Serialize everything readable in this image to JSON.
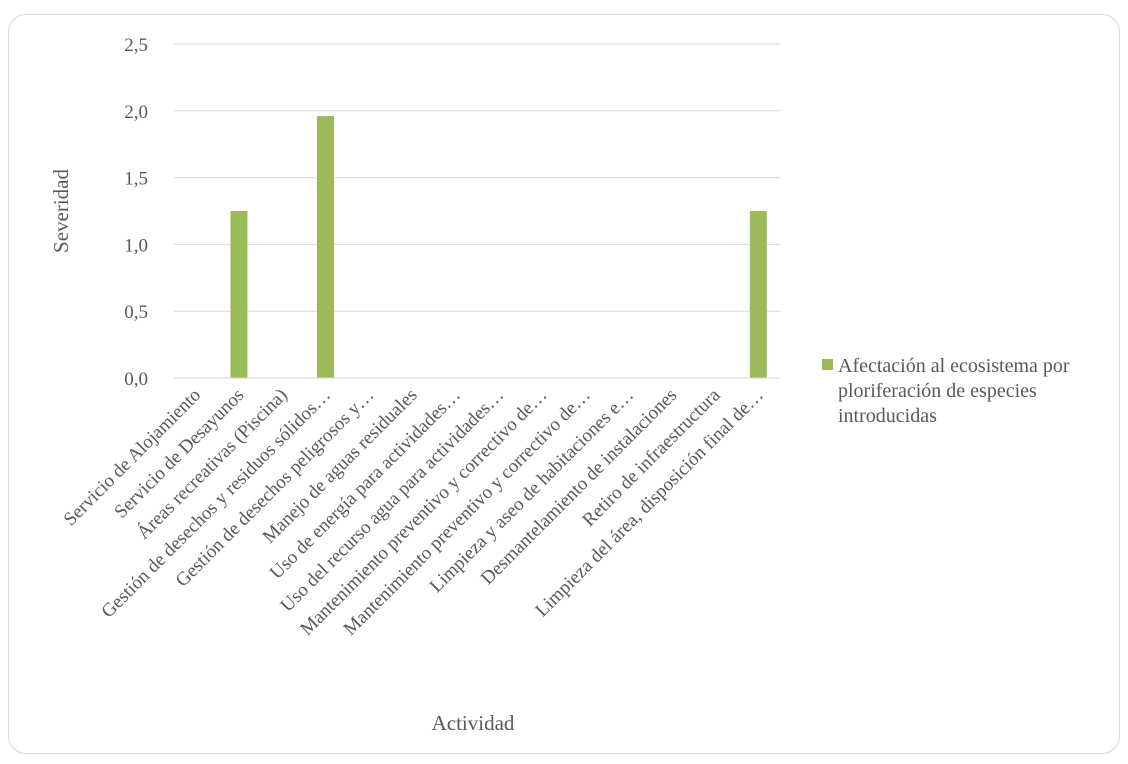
{
  "chart_data": {
    "type": "bar",
    "title": "",
    "xlabel": "Actividad",
    "ylabel": "Severidad",
    "ylim": [
      0,
      2.5
    ],
    "yticks": [
      "0,0",
      "0,5",
      "1,0",
      "1,5",
      "2,0",
      "2,5"
    ],
    "ytick_values": [
      0,
      0.5,
      1.0,
      1.5,
      2.0,
      2.5
    ],
    "grid": true,
    "legend_position": "right",
    "categories": [
      "Servicio de Alojamiento",
      "Servicio de Desayunos",
      "Áreas recreativas (Piscina)",
      "Gestión de desechos y residuos sólidos…",
      "Gestión de desechos peligrosos y…",
      "Manejo de aguas residuales",
      "Uso de energía para actividades…",
      "Uso del recurso agua para actividades…",
      "Mantenimiento preventivo y correctivo de…",
      "Mantenimiento preventivo y correctivo de…",
      "Limpieza y aseo de habitaciones e…",
      "Desmantelamiento de instalaciones",
      "Retiro de infraestructura",
      "Limpieza del área, disposición final de…"
    ],
    "series": [
      {
        "name": "Afectación al ecosistema por ploriferación de especies introducidas",
        "legend_lines": [
          "Afectación al ecosistema por",
          "ploriferación de especies",
          "introducidas"
        ],
        "color": "#9bbb59",
        "values": [
          0,
          1.25,
          0,
          1.96,
          0,
          0,
          0,
          0,
          0,
          0,
          0,
          0,
          0,
          1.25
        ]
      }
    ]
  }
}
